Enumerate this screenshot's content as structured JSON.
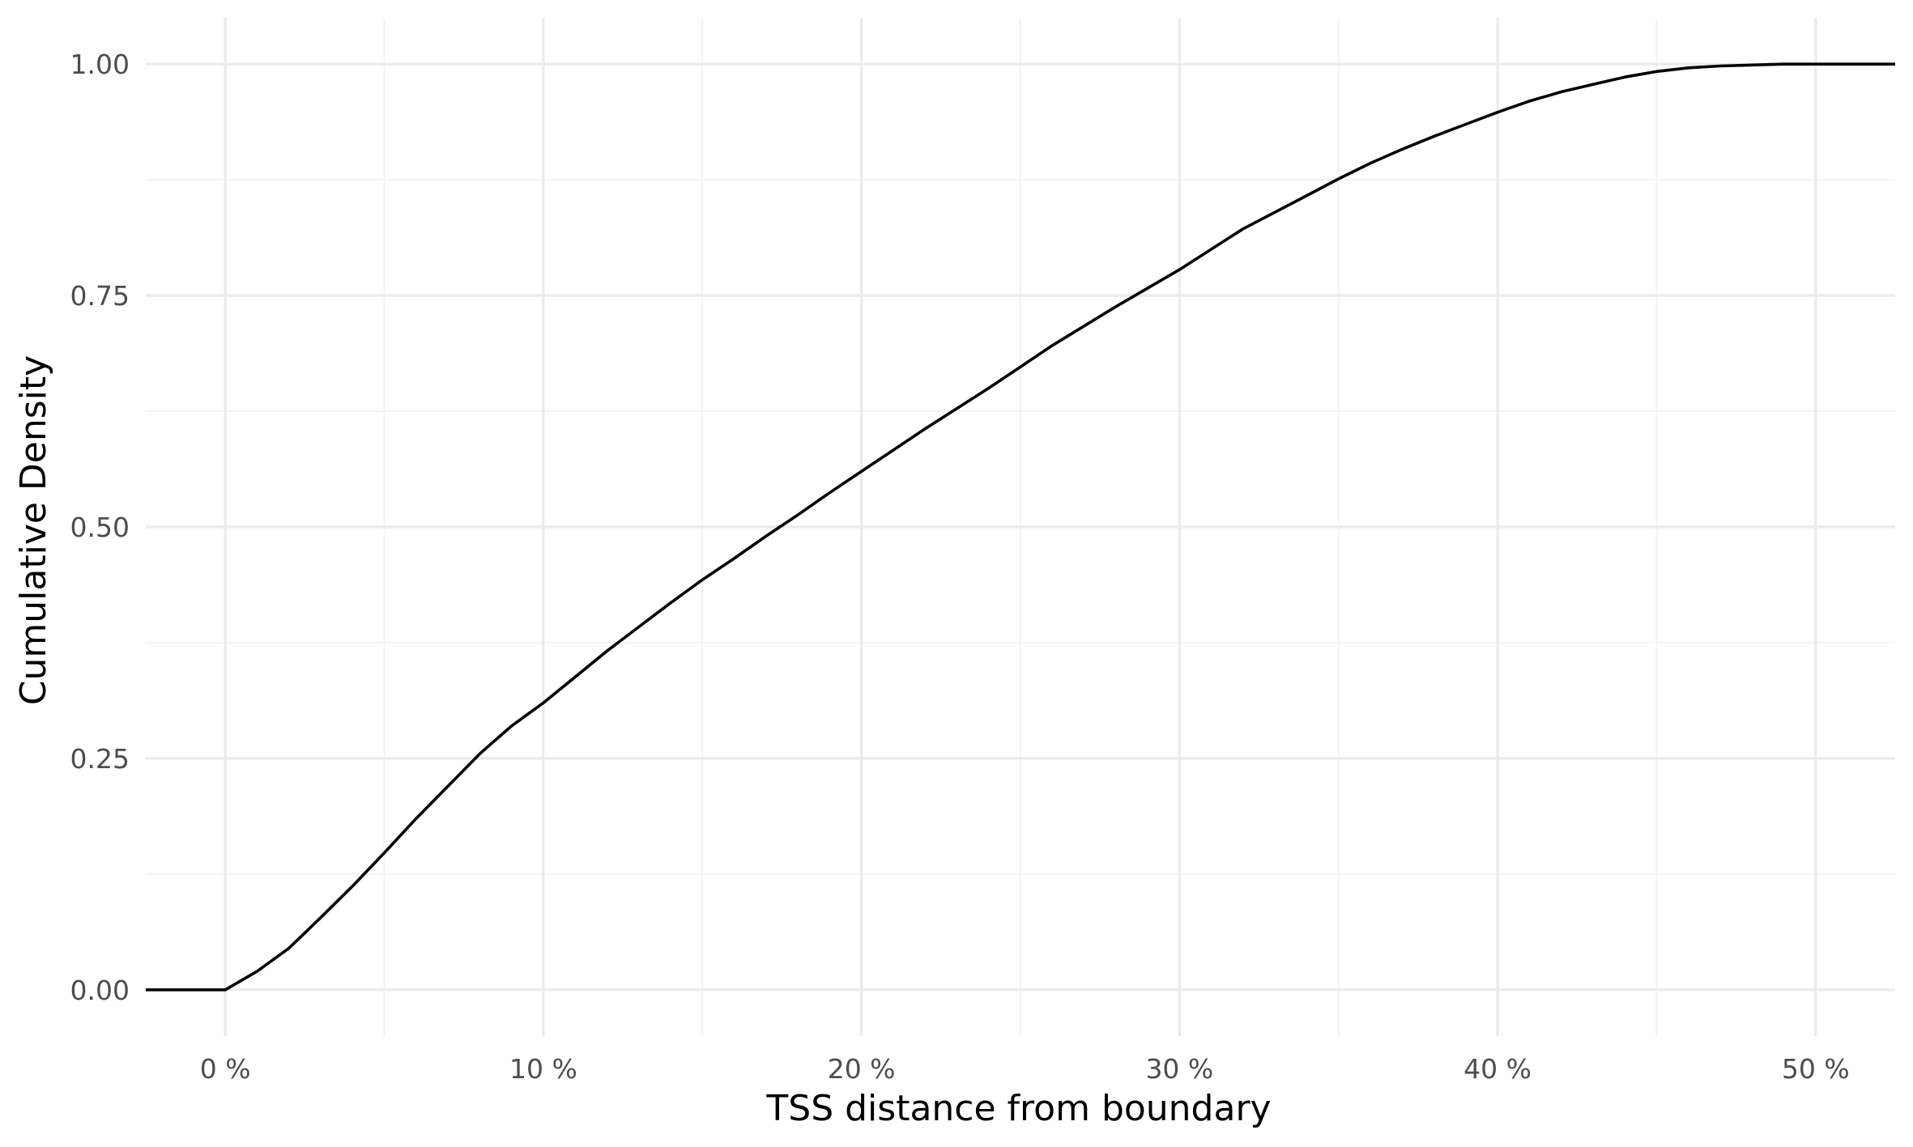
{
  "chart_data": {
    "type": "line",
    "title": "",
    "xlabel": "TSS distance from boundary",
    "ylabel": "Cumulative Density",
    "xlim": [
      -2.5,
      52.5
    ],
    "ylim": [
      -0.05,
      1.05
    ],
    "x_ticks": [
      {
        "value": 0,
        "label": "0 %"
      },
      {
        "value": 10,
        "label": "10 %"
      },
      {
        "value": 20,
        "label": "20 %"
      },
      {
        "value": 30,
        "label": "30 %"
      },
      {
        "value": 40,
        "label": "40 %"
      },
      {
        "value": 50,
        "label": "50 %"
      }
    ],
    "x_minor_ticks": [
      5,
      15,
      25,
      35,
      45
    ],
    "y_ticks": [
      {
        "value": 0,
        "label": "0.00"
      },
      {
        "value": 0.25,
        "label": "0.25"
      },
      {
        "value": 0.5,
        "label": "0.50"
      },
      {
        "value": 0.75,
        "label": "0.75"
      },
      {
        "value": 1,
        "label": "1.00"
      }
    ],
    "y_minor_ticks": [
      0.125,
      0.375,
      0.625,
      0.875
    ],
    "grid": true,
    "legend": "none",
    "series": [
      {
        "color": "#000000",
        "x": [
          -2.5,
          0,
          1,
          2,
          3,
          4,
          5,
          6,
          7,
          8,
          9,
          10,
          11,
          12,
          13,
          14,
          15,
          16,
          17,
          18,
          19,
          20,
          21,
          22,
          23,
          24,
          25,
          26,
          27,
          28,
          29,
          30,
          31,
          32,
          33,
          34,
          35,
          36,
          37,
          38,
          39,
          40,
          41,
          42,
          43,
          44,
          45,
          46,
          47,
          48,
          49,
          50,
          52.5
        ],
        "y": [
          0,
          0,
          0.02,
          0.045,
          0.078,
          0.112,
          0.148,
          0.185,
          0.22,
          0.255,
          0.285,
          0.31,
          0.338,
          0.366,
          0.392,
          0.418,
          0.443,
          0.466,
          0.49,
          0.513,
          0.537,
          0.56,
          0.583,
          0.606,
          0.628,
          0.65,
          0.673,
          0.696,
          0.717,
          0.738,
          0.758,
          0.778,
          0.8,
          0.822,
          0.84,
          0.858,
          0.876,
          0.893,
          0.908,
          0.922,
          0.935,
          0.948,
          0.96,
          0.97,
          0.978,
          0.986,
          0.992,
          0.996,
          0.998,
          0.999,
          1.0,
          1.0,
          1.0
        ]
      }
    ]
  }
}
